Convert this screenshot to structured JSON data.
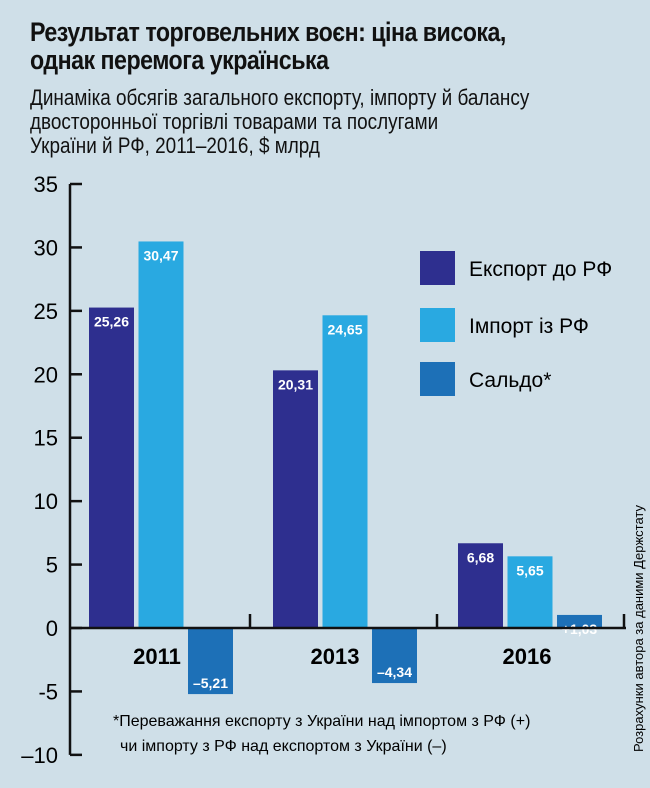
{
  "header": {
    "title_line1": "Результат торговельних воєн: ціна висока,",
    "title_line2": "однак перемога українська",
    "subtitle_line1": "Динаміка обсягів загального експорту, імпорту й балансу",
    "subtitle_line2": "двосторонньої торгівлі товарами та послугами",
    "subtitle_line3": "України й РФ, 2011–2016, $ млрд"
  },
  "chart_data": {
    "type": "bar",
    "title": "Результат торговельних воєн: ціна висока, однак перемога українська",
    "categories": [
      "2011",
      "2013",
      "2016"
    ],
    "series": [
      {
        "name": "Експорт до РФ",
        "color": "#2e2f8f",
        "values": [
          25.26,
          20.31,
          6.68
        ],
        "labels": [
          "25,26",
          "20,31",
          "6,68"
        ]
      },
      {
        "name": "Імпорт із РФ",
        "color": "#29a9e1",
        "values": [
          30.47,
          24.65,
          5.65
        ],
        "labels": [
          "30,47",
          "24,65",
          "5,65"
        ]
      },
      {
        "name": "Сальдо*",
        "color": "#1d70b7",
        "values": [
          -5.21,
          -4.34,
          1.03
        ],
        "labels": [
          "–5,21",
          "–4,34",
          "+1,03"
        ]
      }
    ],
    "ylim": [
      -10,
      35
    ],
    "yticks": [
      35,
      30,
      25,
      20,
      15,
      10,
      5,
      0,
      -5,
      -10
    ],
    "ytick_labels": [
      "35",
      "30",
      "25",
      "20",
      "15",
      "10",
      "5",
      "0",
      "-5",
      "–10"
    ],
    "legend_position": "top-right",
    "xlabel": "",
    "ylabel": ""
  },
  "footnote": {
    "line1": "*Переважання експорту з України над імпортом з РФ (+)",
    "line2": "чи імпорту з РФ над експортом з України (–)"
  },
  "source": "Розрахунки автора за даними Держстату"
}
